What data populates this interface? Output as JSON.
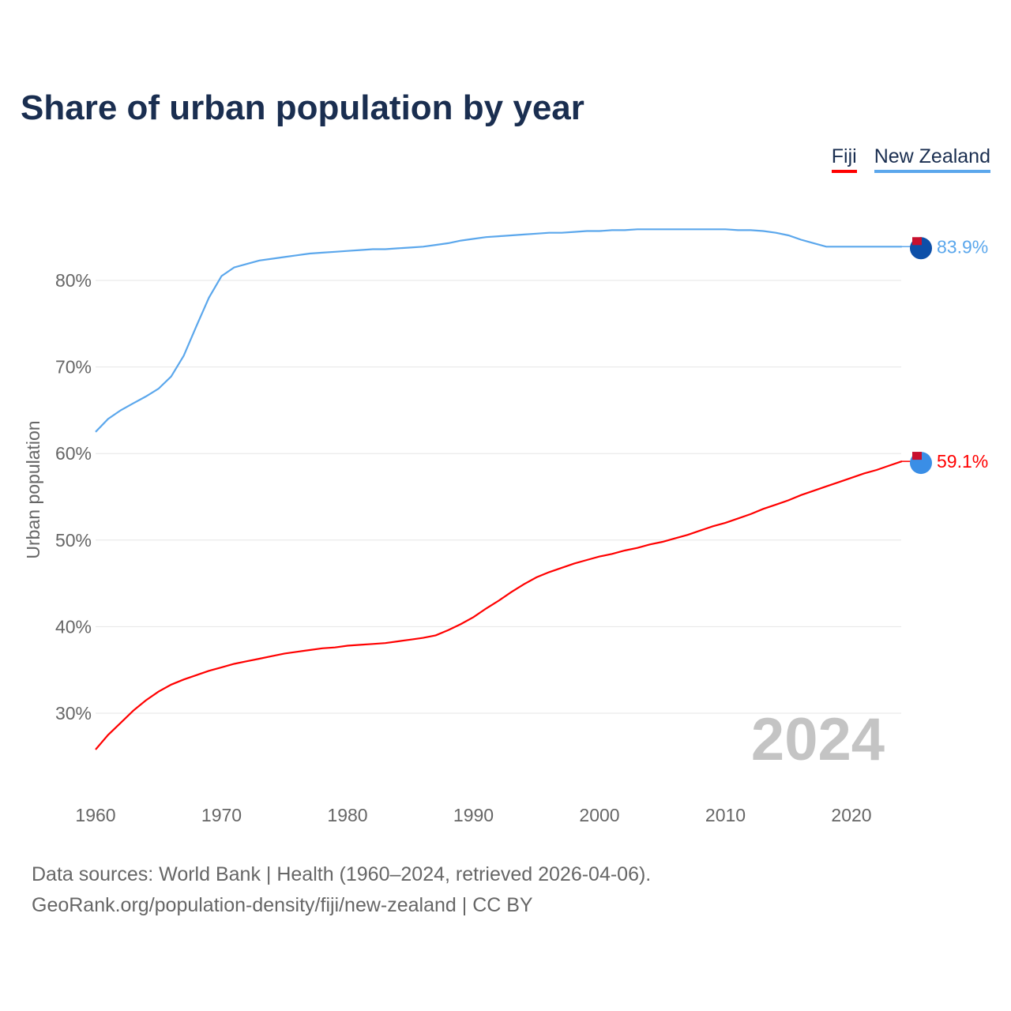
{
  "title": "Share of urban population by year",
  "legend": [
    {
      "label": "Fiji",
      "color": "#ff0000"
    },
    {
      "label": "New Zealand",
      "color": "#5ba7ec"
    }
  ],
  "footer": {
    "line1": "Data sources: World Bank | Health (1960–2024, retrieved 2026-04-06).",
    "line2": "GeoRank.org/population-density/fiji/new-zealand | CC BY"
  },
  "chart_data": {
    "type": "line",
    "title": "Share of urban population by year",
    "ylabel": "Urban population",
    "xlabel": "",
    "year_watermark": "2024",
    "ylim": [
      22,
      88
    ],
    "xlim": [
      1960,
      2024
    ],
    "yticks": [
      30,
      40,
      50,
      60,
      70,
      80
    ],
    "ytick_labels": [
      "30%",
      "40%",
      "50%",
      "60%",
      "70%",
      "80%"
    ],
    "xticks": [
      1960,
      1970,
      1980,
      1990,
      2000,
      2010,
      2020
    ],
    "xtick_labels": [
      "1960",
      "1970",
      "1980",
      "1990",
      "2000",
      "2010",
      "2020"
    ],
    "grid": true,
    "legend_position": "top-right",
    "x_start": 1960,
    "series": [
      {
        "name": "Fiji",
        "color": "#ff0000",
        "end_label": "59.1%",
        "values": [
          25.8,
          27.5,
          28.9,
          30.3,
          31.5,
          32.5,
          33.3,
          33.9,
          34.4,
          34.9,
          35.3,
          35.7,
          36.0,
          36.3,
          36.6,
          36.9,
          37.1,
          37.3,
          37.5,
          37.6,
          37.8,
          37.9,
          38.0,
          38.1,
          38.3,
          38.5,
          38.7,
          39.0,
          39.6,
          40.3,
          41.1,
          42.1,
          43.0,
          44.0,
          44.9,
          45.7,
          46.3,
          46.8,
          47.3,
          47.7,
          48.1,
          48.4,
          48.8,
          49.1,
          49.5,
          49.8,
          50.2,
          50.6,
          51.1,
          51.6,
          52.0,
          52.5,
          53.0,
          53.6,
          54.1,
          54.6,
          55.2,
          55.7,
          56.2,
          56.7,
          57.2,
          57.7,
          58.1,
          58.6,
          59.1
        ]
      },
      {
        "name": "New Zealand",
        "color": "#5ba7ec",
        "end_label": "83.9%",
        "values": [
          62.5,
          64.0,
          65.0,
          65.8,
          66.6,
          67.5,
          68.9,
          71.3,
          74.7,
          78.0,
          80.5,
          81.5,
          81.9,
          82.3,
          82.5,
          82.7,
          82.9,
          83.1,
          83.2,
          83.3,
          83.4,
          83.5,
          83.6,
          83.6,
          83.7,
          83.8,
          83.9,
          84.1,
          84.3,
          84.6,
          84.8,
          85.0,
          85.1,
          85.2,
          85.3,
          85.4,
          85.5,
          85.5,
          85.6,
          85.7,
          85.7,
          85.8,
          85.8,
          85.9,
          85.9,
          85.9,
          85.9,
          85.9,
          85.9,
          85.9,
          85.9,
          85.8,
          85.8,
          85.7,
          85.5,
          85.2,
          84.7,
          84.3,
          83.9,
          83.9,
          83.9,
          83.9,
          83.9,
          83.9,
          83.9
        ]
      }
    ]
  }
}
